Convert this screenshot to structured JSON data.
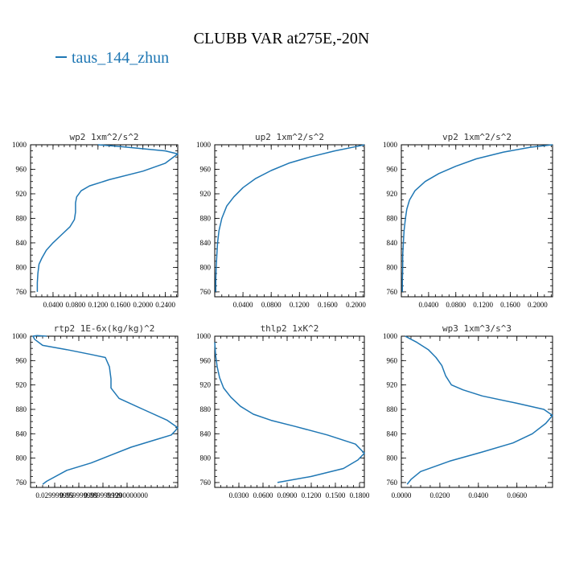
{
  "title": "CLUBB VAR at275E,-20N",
  "legend": {
    "label": "taus_144_zhun",
    "color": "#1f77b4"
  },
  "chart_data": [
    {
      "type": "line",
      "title": "wp2  1xm^2/s^2",
      "xlim": [
        0.0,
        0.262
      ],
      "ylim": [
        1000,
        752
      ],
      "y_inverted": true,
      "xticks": [
        0.04,
        0.08,
        0.12,
        0.16,
        0.2,
        0.24
      ],
      "xtick_labels": [
        "0.0400",
        "0.0800",
        "0.1200",
        "0.1600",
        "0.2000",
        "0.2400"
      ],
      "yticks": [
        760,
        800,
        840,
        880,
        920,
        960,
        1000
      ],
      "series": [
        {
          "color": "#1f77b4",
          "x": [
            0.012,
            0.012,
            0.013,
            0.015,
            0.02,
            0.028,
            0.04,
            0.055,
            0.07,
            0.078,
            0.08,
            0.08,
            0.082,
            0.09,
            0.105,
            0.14,
            0.2,
            0.24,
            0.262,
            0.24,
            0.16,
            0.12
          ],
          "y": [
            760,
            775,
            790,
            805,
            815,
            828,
            840,
            853,
            866,
            878,
            890,
            905,
            915,
            925,
            933,
            943,
            957,
            970,
            985,
            990,
            997,
            1000
          ]
        }
      ]
    },
    {
      "type": "line",
      "title": "up2  1xm^2/s^2",
      "xlim": [
        0.0,
        0.212
      ],
      "ylim": [
        1000,
        752
      ],
      "y_inverted": true,
      "xticks": [
        0.04,
        0.08,
        0.12,
        0.16,
        0.2
      ],
      "xtick_labels": [
        "0.0400",
        "0.0800",
        "0.1200",
        "0.1600",
        "0.2000"
      ],
      "yticks": [
        760,
        800,
        840,
        880,
        920,
        960,
        1000
      ],
      "series": [
        {
          "color": "#1f77b4",
          "x": [
            0.0015,
            0.0015,
            0.002,
            0.003,
            0.004,
            0.006,
            0.01,
            0.017,
            0.027,
            0.04,
            0.058,
            0.08,
            0.105,
            0.135,
            0.17,
            0.2,
            0.212
          ],
          "y": [
            760,
            780,
            800,
            820,
            840,
            860,
            880,
            900,
            915,
            930,
            945,
            958,
            970,
            980,
            990,
            997,
            1000
          ]
        }
      ]
    },
    {
      "type": "line",
      "title": "vp2  1xm^2/s^2",
      "xlim": [
        0.0,
        0.222
      ],
      "ylim": [
        1000,
        752
      ],
      "y_inverted": true,
      "xticks": [
        0.04,
        0.08,
        0.12,
        0.16,
        0.2
      ],
      "xtick_labels": [
        "0.0400",
        "0.0800",
        "0.1200",
        "0.1600",
        "0.2000"
      ],
      "yticks": [
        760,
        800,
        840,
        880,
        920,
        960,
        1000
      ],
      "series": [
        {
          "color": "#1f77b4",
          "x": [
            0.0015,
            0.0015,
            0.002,
            0.002,
            0.003,
            0.004,
            0.006,
            0.008,
            0.012,
            0.02,
            0.035,
            0.055,
            0.08,
            0.11,
            0.15,
            0.19,
            0.222
          ],
          "y": [
            760,
            780,
            800,
            820,
            840,
            860,
            880,
            895,
            910,
            925,
            940,
            953,
            965,
            977,
            988,
            996,
            1000
          ]
        }
      ]
    },
    {
      "type": "line",
      "title": "rtp2  1E-6x(kg/kg)^2",
      "xlim": [
        0.0,
        0.183
      ],
      "ylim": [
        1000,
        752
      ],
      "y_inverted": true,
      "xticks": [
        0.03,
        0.06,
        0.09,
        0.12
      ],
      "xtick_labels": [
        "0.029999999",
        "0.059999999",
        "0.089999999",
        "0.1200000000"
      ],
      "yticks": [
        760,
        800,
        840,
        880,
        920,
        960,
        1000
      ],
      "series": [
        {
          "color": "#1f77b4",
          "x": [
            0.015,
            0.02,
            0.045,
            0.075,
            0.1,
            0.125,
            0.155,
            0.175,
            0.18,
            0.183,
            0.17,
            0.14,
            0.11,
            0.1,
            0.1,
            0.098,
            0.093,
            0.075,
            0.045,
            0.015,
            0.005,
            0.003,
            0.008,
            0.02
          ],
          "y": [
            757,
            762,
            780,
            792,
            805,
            818,
            830,
            838,
            845,
            850,
            862,
            880,
            898,
            915,
            930,
            950,
            965,
            970,
            978,
            985,
            995,
            1000,
            1001,
            1000
          ]
        }
      ]
    },
    {
      "type": "line",
      "title": "thlp2  1xK^2",
      "xlim": [
        0.0,
        0.186
      ],
      "ylim": [
        1000,
        752
      ],
      "y_inverted": true,
      "xticks": [
        0.03,
        0.06,
        0.09,
        0.12,
        0.15,
        0.18
      ],
      "xtick_labels": [
        "0.0300",
        "0.0600",
        "0.0900",
        "0.1200",
        "0.1500",
        "0.1800"
      ],
      "yticks": [
        760,
        800,
        840,
        880,
        920,
        960,
        1000
      ],
      "series": [
        {
          "color": "#1f77b4",
          "x": [
            0.078,
            0.12,
            0.16,
            0.178,
            0.186,
            0.175,
            0.14,
            0.1,
            0.07,
            0.048,
            0.032,
            0.02,
            0.011,
            0.006,
            0.003,
            0.001,
            0.0
          ],
          "y": [
            760,
            770,
            783,
            797,
            808,
            823,
            838,
            852,
            862,
            872,
            885,
            900,
            915,
            932,
            950,
            970,
            990
          ]
        }
      ]
    },
    {
      "type": "line",
      "title": "wp3  1xm^3/s^3",
      "xlim": [
        0.0,
        0.0785
      ],
      "ylim": [
        1000,
        752
      ],
      "y_inverted": true,
      "xticks": [
        0.0,
        0.02,
        0.04,
        0.06
      ],
      "xtick_labels": [
        "0.0000",
        "0.0200",
        "0.0400",
        "0.0600"
      ],
      "yticks": [
        760,
        800,
        840,
        880,
        920,
        960,
        1000
      ],
      "series": [
        {
          "color": "#1f77b4",
          "x": [
            0.003,
            0.005,
            0.01,
            0.025,
            0.042,
            0.058,
            0.068,
            0.075,
            0.0785,
            0.074,
            0.06,
            0.042,
            0.032,
            0.026,
            0.023,
            0.021,
            0.018,
            0.014,
            0.008,
            0.002
          ],
          "y": [
            757,
            765,
            778,
            795,
            810,
            825,
            840,
            857,
            870,
            880,
            890,
            902,
            912,
            920,
            935,
            952,
            965,
            978,
            990,
            1000
          ]
        }
      ]
    }
  ]
}
